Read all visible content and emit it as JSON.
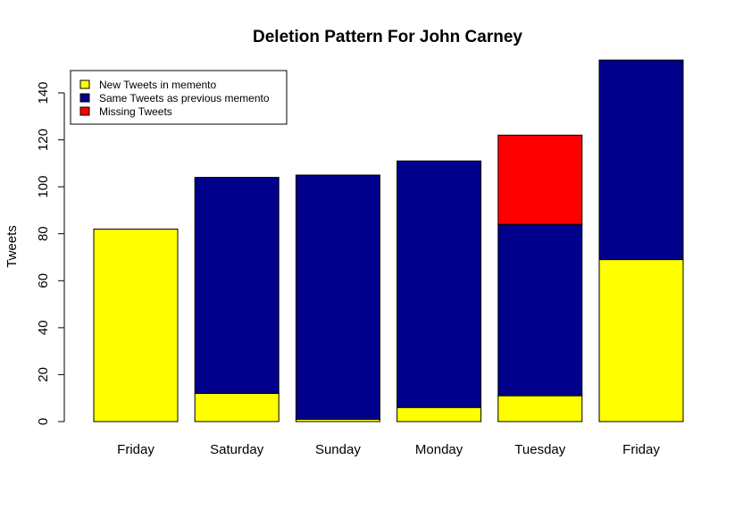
{
  "chart_data": {
    "type": "bar",
    "stacked": true,
    "title": "Deletion Pattern For John Carney",
    "xlabel": "",
    "ylabel": "Tweets",
    "categories": [
      "Friday",
      "Saturday",
      "Sunday",
      "Monday",
      "Tuesday",
      "Friday"
    ],
    "ylim": [
      0,
      155
    ],
    "yticks": [
      0,
      20,
      40,
      60,
      80,
      100,
      120,
      140
    ],
    "series": [
      {
        "name": "New Tweets in memento",
        "color": "#FFFF00",
        "values": [
          82,
          12,
          1,
          6,
          11,
          69
        ]
      },
      {
        "name": "Same Tweets as previous memento",
        "color": "#00008B",
        "values": [
          0,
          92,
          104,
          105,
          73,
          85
        ]
      },
      {
        "name": "Missing Tweets",
        "color": "#FF0000",
        "values": [
          0,
          0,
          0,
          0,
          38,
          0
        ]
      }
    ],
    "legend": "top-left",
    "grid": false
  }
}
